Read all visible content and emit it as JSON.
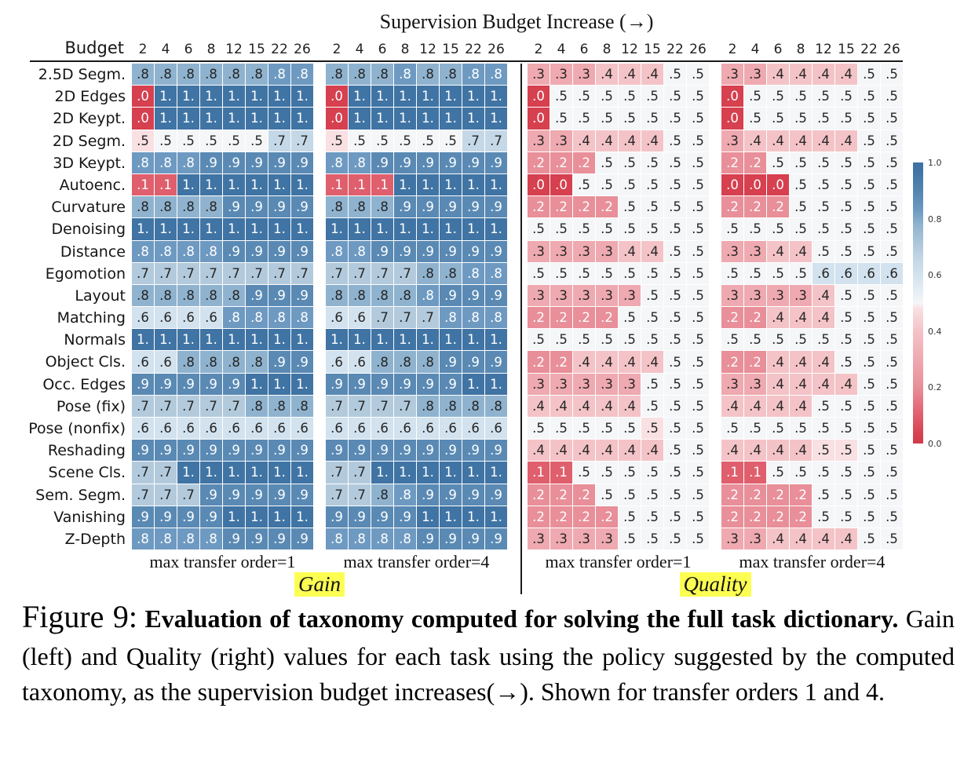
{
  "title": "Supervision Budget Increase (→)",
  "header": {
    "budget_label": "Budget"
  },
  "chart_data": {
    "type": "heatmap",
    "title": "Supervision Budget Increase (→)",
    "columns": [
      "2",
      "4",
      "6",
      "8",
      "12",
      "15",
      "22",
      "26"
    ],
    "rows": [
      "2.5D Segm.",
      "2D Edges",
      "2D Keypt.",
      "2D Segm.",
      "3D Keypt.",
      "Autoenc.",
      "Curvature",
      "Denoising",
      "Distance",
      "Egomotion",
      "Layout",
      "Matching",
      "Normals",
      "Object Cls.",
      "Occ. Edges",
      "Pose (fix)",
      "Pose (nonfix)",
      "Reshading",
      "Scene Cls.",
      "Sem. Segm.",
      "Vanishing",
      "Z-Depth"
    ],
    "value_range": [
      0,
      1
    ],
    "blocks": [
      {
        "group": "Gain",
        "footer": "max transfer order=1",
        "values": [
          [
            0.78,
            0.78,
            0.78,
            0.78,
            0.78,
            0.78,
            0.83,
            0.83
          ],
          [
            0.03,
            0.97,
            0.97,
            0.97,
            0.97,
            0.97,
            0.97,
            0.97
          ],
          [
            0.03,
            0.97,
            0.97,
            0.97,
            0.97,
            0.97,
            0.97,
            0.97
          ],
          [
            0.48,
            0.5,
            0.5,
            0.5,
            0.5,
            0.5,
            0.65,
            0.65
          ],
          [
            0.83,
            0.83,
            0.83,
            0.88,
            0.88,
            0.88,
            0.88,
            0.88
          ],
          [
            0.1,
            0.1,
            0.97,
            0.97,
            0.97,
            0.97,
            0.97,
            0.97
          ],
          [
            0.78,
            0.78,
            0.78,
            0.78,
            0.88,
            0.88,
            0.88,
            0.88
          ],
          [
            0.97,
            0.97,
            0.97,
            0.97,
            0.97,
            0.97,
            0.97,
            0.97
          ],
          [
            0.83,
            0.83,
            0.83,
            0.83,
            0.88,
            0.88,
            0.88,
            0.88
          ],
          [
            0.7,
            0.7,
            0.7,
            0.7,
            0.7,
            0.7,
            0.7,
            0.7
          ],
          [
            0.78,
            0.78,
            0.78,
            0.78,
            0.78,
            0.88,
            0.88,
            0.88
          ],
          [
            0.6,
            0.6,
            0.6,
            0.6,
            0.83,
            0.83,
            0.83,
            0.83
          ],
          [
            0.97,
            0.97,
            0.97,
            0.97,
            0.97,
            0.97,
            0.97,
            0.97
          ],
          [
            0.6,
            0.6,
            0.78,
            0.78,
            0.78,
            0.78,
            0.88,
            0.88
          ],
          [
            0.88,
            0.88,
            0.88,
            0.88,
            0.88,
            0.97,
            0.97,
            0.97
          ],
          [
            0.7,
            0.7,
            0.7,
            0.7,
            0.7,
            0.78,
            0.78,
            0.78
          ],
          [
            0.6,
            0.6,
            0.6,
            0.6,
            0.6,
            0.6,
            0.6,
            0.6
          ],
          [
            0.88,
            0.88,
            0.88,
            0.88,
            0.88,
            0.88,
            0.88,
            0.88
          ],
          [
            0.7,
            0.7,
            0.97,
            0.97,
            0.97,
            0.97,
            0.97,
            0.97
          ],
          [
            0.7,
            0.7,
            0.7,
            0.88,
            0.88,
            0.88,
            0.88,
            0.88
          ],
          [
            0.88,
            0.88,
            0.88,
            0.88,
            0.97,
            0.97,
            0.97,
            0.97
          ],
          [
            0.83,
            0.83,
            0.83,
            0.83,
            0.88,
            0.88,
            0.88,
            0.88
          ]
        ]
      },
      {
        "group": "Gain",
        "footer": "max transfer order=4",
        "values": [
          [
            0.78,
            0.78,
            0.78,
            0.83,
            0.78,
            0.78,
            0.83,
            0.83
          ],
          [
            0.03,
            0.97,
            0.97,
            0.97,
            0.97,
            0.97,
            0.97,
            0.97
          ],
          [
            0.03,
            0.97,
            0.97,
            0.97,
            0.97,
            0.97,
            0.97,
            0.97
          ],
          [
            0.48,
            0.5,
            0.5,
            0.5,
            0.5,
            0.5,
            0.65,
            0.65
          ],
          [
            0.83,
            0.83,
            0.88,
            0.88,
            0.88,
            0.88,
            0.88,
            0.88
          ],
          [
            0.1,
            0.1,
            0.1,
            0.97,
            0.97,
            0.97,
            0.97,
            0.97
          ],
          [
            0.78,
            0.78,
            0.78,
            0.88,
            0.88,
            0.88,
            0.88,
            0.88
          ],
          [
            0.97,
            0.97,
            0.97,
            0.97,
            0.97,
            0.97,
            0.97,
            0.97
          ],
          [
            0.83,
            0.83,
            0.88,
            0.88,
            0.88,
            0.88,
            0.88,
            0.88
          ],
          [
            0.7,
            0.7,
            0.7,
            0.7,
            0.78,
            0.78,
            0.83,
            0.83
          ],
          [
            0.78,
            0.78,
            0.78,
            0.78,
            0.83,
            0.88,
            0.88,
            0.88
          ],
          [
            0.6,
            0.6,
            0.7,
            0.7,
            0.7,
            0.83,
            0.83,
            0.83
          ],
          [
            0.97,
            0.97,
            0.97,
            0.97,
            0.97,
            0.97,
            0.97,
            0.97
          ],
          [
            0.6,
            0.6,
            0.78,
            0.78,
            0.78,
            0.88,
            0.88,
            0.88
          ],
          [
            0.88,
            0.88,
            0.88,
            0.88,
            0.88,
            0.88,
            0.97,
            0.97
          ],
          [
            0.7,
            0.7,
            0.7,
            0.7,
            0.78,
            0.78,
            0.78,
            0.78
          ],
          [
            0.6,
            0.6,
            0.6,
            0.6,
            0.6,
            0.6,
            0.6,
            0.6
          ],
          [
            0.88,
            0.88,
            0.88,
            0.88,
            0.88,
            0.88,
            0.88,
            0.88
          ],
          [
            0.7,
            0.7,
            0.97,
            0.97,
            0.97,
            0.97,
            0.97,
            0.97
          ],
          [
            0.7,
            0.7,
            0.78,
            0.83,
            0.88,
            0.88,
            0.88,
            0.88
          ],
          [
            0.88,
            0.88,
            0.88,
            0.88,
            0.97,
            0.97,
            0.97,
            0.97
          ],
          [
            0.83,
            0.83,
            0.83,
            0.83,
            0.88,
            0.88,
            0.88,
            0.88
          ]
        ]
      },
      {
        "group": "Quality",
        "footer": "max transfer order=1",
        "values": [
          [
            0.3,
            0.3,
            0.3,
            0.4,
            0.4,
            0.4,
            0.5,
            0.5
          ],
          [
            0.03,
            0.5,
            0.5,
            0.5,
            0.5,
            0.5,
            0.5,
            0.5
          ],
          [
            0.03,
            0.5,
            0.5,
            0.5,
            0.5,
            0.5,
            0.5,
            0.5
          ],
          [
            0.3,
            0.3,
            0.4,
            0.4,
            0.4,
            0.4,
            0.5,
            0.5
          ],
          [
            0.2,
            0.2,
            0.2,
            0.5,
            0.5,
            0.5,
            0.5,
            0.5
          ],
          [
            0.03,
            0.03,
            0.5,
            0.5,
            0.5,
            0.5,
            0.5,
            0.5
          ],
          [
            0.2,
            0.2,
            0.2,
            0.2,
            0.5,
            0.5,
            0.5,
            0.5
          ],
          [
            0.5,
            0.5,
            0.5,
            0.5,
            0.5,
            0.5,
            0.5,
            0.5
          ],
          [
            0.3,
            0.3,
            0.3,
            0.3,
            0.4,
            0.4,
            0.5,
            0.5
          ],
          [
            0.5,
            0.5,
            0.5,
            0.5,
            0.5,
            0.5,
            0.5,
            0.5
          ],
          [
            0.3,
            0.3,
            0.3,
            0.3,
            0.3,
            0.5,
            0.5,
            0.5
          ],
          [
            0.2,
            0.2,
            0.2,
            0.2,
            0.5,
            0.5,
            0.5,
            0.5
          ],
          [
            0.5,
            0.5,
            0.5,
            0.5,
            0.5,
            0.5,
            0.5,
            0.5
          ],
          [
            0.2,
            0.2,
            0.4,
            0.4,
            0.4,
            0.4,
            0.5,
            0.5
          ],
          [
            0.3,
            0.3,
            0.3,
            0.3,
            0.3,
            0.5,
            0.5,
            0.5
          ],
          [
            0.4,
            0.4,
            0.4,
            0.4,
            0.4,
            0.5,
            0.5,
            0.5
          ],
          [
            0.5,
            0.5,
            0.5,
            0.5,
            0.5,
            0.48,
            0.5,
            0.5
          ],
          [
            0.4,
            0.4,
            0.4,
            0.4,
            0.4,
            0.4,
            0.5,
            0.5
          ],
          [
            0.1,
            0.1,
            0.5,
            0.5,
            0.5,
            0.5,
            0.5,
            0.5
          ],
          [
            0.2,
            0.2,
            0.2,
            0.5,
            0.5,
            0.5,
            0.5,
            0.5
          ],
          [
            0.2,
            0.2,
            0.2,
            0.2,
            0.5,
            0.5,
            0.5,
            0.5
          ],
          [
            0.3,
            0.3,
            0.3,
            0.3,
            0.5,
            0.5,
            0.5,
            0.5
          ]
        ]
      },
      {
        "group": "Quality",
        "footer": "max transfer order=4",
        "values": [
          [
            0.3,
            0.3,
            0.4,
            0.4,
            0.4,
            0.4,
            0.5,
            0.5
          ],
          [
            0.03,
            0.5,
            0.5,
            0.5,
            0.5,
            0.5,
            0.5,
            0.5
          ],
          [
            0.03,
            0.5,
            0.5,
            0.5,
            0.5,
            0.5,
            0.5,
            0.5
          ],
          [
            0.3,
            0.4,
            0.4,
            0.4,
            0.4,
            0.4,
            0.5,
            0.5
          ],
          [
            0.2,
            0.2,
            0.5,
            0.5,
            0.5,
            0.5,
            0.5,
            0.5
          ],
          [
            0.03,
            0.03,
            0.03,
            0.5,
            0.5,
            0.5,
            0.5,
            0.5
          ],
          [
            0.2,
            0.2,
            0.2,
            0.5,
            0.5,
            0.5,
            0.5,
            0.5
          ],
          [
            0.5,
            0.5,
            0.5,
            0.5,
            0.5,
            0.5,
            0.5,
            0.5
          ],
          [
            0.3,
            0.3,
            0.4,
            0.4,
            0.5,
            0.5,
            0.5,
            0.5
          ],
          [
            0.5,
            0.5,
            0.5,
            0.5,
            0.6,
            0.6,
            0.6,
            0.6
          ],
          [
            0.3,
            0.3,
            0.3,
            0.3,
            0.4,
            0.5,
            0.5,
            0.5
          ],
          [
            0.2,
            0.2,
            0.4,
            0.4,
            0.4,
            0.5,
            0.5,
            0.5
          ],
          [
            0.5,
            0.5,
            0.5,
            0.5,
            0.5,
            0.5,
            0.5,
            0.5
          ],
          [
            0.2,
            0.2,
            0.4,
            0.4,
            0.4,
            0.5,
            0.5,
            0.5
          ],
          [
            0.3,
            0.3,
            0.4,
            0.4,
            0.4,
            0.4,
            0.5,
            0.5
          ],
          [
            0.4,
            0.4,
            0.4,
            0.4,
            0.5,
            0.5,
            0.5,
            0.5
          ],
          [
            0.5,
            0.5,
            0.5,
            0.5,
            0.5,
            0.5,
            0.5,
            0.5
          ],
          [
            0.4,
            0.4,
            0.4,
            0.4,
            0.48,
            0.48,
            0.5,
            0.5
          ],
          [
            0.1,
            0.1,
            0.5,
            0.5,
            0.5,
            0.5,
            0.5,
            0.5
          ],
          [
            0.2,
            0.2,
            0.2,
            0.2,
            0.5,
            0.5,
            0.5,
            0.5
          ],
          [
            0.2,
            0.2,
            0.2,
            0.2,
            0.5,
            0.5,
            0.5,
            0.5
          ],
          [
            0.3,
            0.3,
            0.4,
            0.4,
            0.4,
            0.4,
            0.5,
            0.5
          ]
        ]
      }
    ]
  },
  "group_labels": {
    "gain": "Gain",
    "quality": "Quality",
    "highlight_color": "#fcff52"
  },
  "colorbar": {
    "ticks": [
      "1.0",
      "0.8",
      "0.6",
      "0.4",
      "0.2",
      "0.0"
    ]
  },
  "color_scale": [
    [
      0.0,
      "#d03b4c"
    ],
    [
      0.03,
      "#d6404f"
    ],
    [
      0.1,
      "#e05f6d"
    ],
    [
      0.2,
      "#e88f99"
    ],
    [
      0.3,
      "#efa9b0"
    ],
    [
      0.4,
      "#f4c3c7"
    ],
    [
      0.48,
      "#f9e0e2"
    ],
    [
      0.5,
      "#f4f6f8"
    ],
    [
      0.6,
      "#d2e2ee"
    ],
    [
      0.65,
      "#c5d8e7"
    ],
    [
      0.7,
      "#b2cadc"
    ],
    [
      0.78,
      "#8fb3cf"
    ],
    [
      0.83,
      "#6e9ac2"
    ],
    [
      0.88,
      "#5a8ab4"
    ],
    [
      0.97,
      "#4074a4"
    ],
    [
      1.0,
      "#3d71a1"
    ]
  ],
  "text_colors": {
    "light": "#ffffff",
    "dark": "#262626"
  },
  "caption": {
    "figure_label": "Figure 9:",
    "bold_lead": "Evaluation of taxonomy computed for solving the full task dictionary.",
    "body": " Gain (left) and Quality (right) values for each task using the policy suggested by the computed taxonomy, as the supervision budget increases(→). Shown for transfer orders 1 and 4."
  }
}
